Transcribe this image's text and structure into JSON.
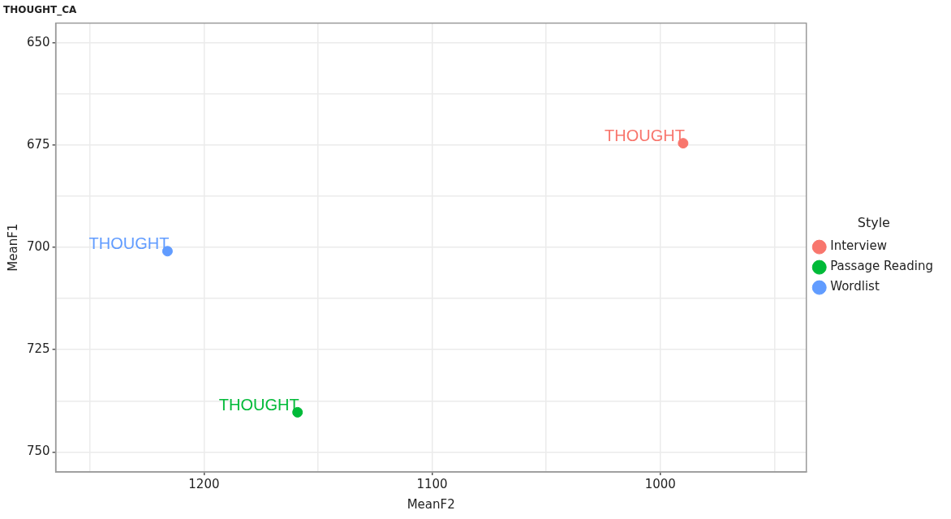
{
  "chart_data": {
    "type": "scatter",
    "title": "THOUGHT_CA",
    "xlabel": "MeanF2",
    "ylabel": "MeanF1",
    "legend_title": "Style",
    "series": [
      {
        "name": "Interview",
        "color": "#f8766d",
        "x": [
          990
        ],
        "values": [
          674.5
        ],
        "value_labels": [
          "THOUGHT"
        ]
      },
      {
        "name": "Passage Reading",
        "color": "#00ba38",
        "x": [
          1159
        ],
        "values": [
          740.3
        ],
        "value_labels": [
          "THOUGHT"
        ]
      },
      {
        "name": "Wordlist",
        "color": "#619cff",
        "x": [
          1216
        ],
        "values": [
          700.9
        ],
        "value_labels": [
          "THOUGHT"
        ]
      }
    ],
    "xlim": [
      1265,
      936
    ],
    "xticks": [
      {
        "value": 1250,
        "label": null
      },
      1200,
      {
        "value": 1150,
        "label": null
      },
      1100,
      {
        "value": 1050,
        "label": null
      },
      1000,
      {
        "value": 950,
        "label": null
      }
    ],
    "ylim": [
      754.9,
      645.1
    ],
    "yticks": [
      650,
      {
        "value": 662.5,
        "label": null
      },
      675,
      {
        "value": 687.5,
        "label": null
      },
      700,
      {
        "value": 712.5,
        "label": null
      },
      725,
      {
        "value": 737.5,
        "label": null
      },
      750
    ],
    "grid": true,
    "legend": "right",
    "marker": "circle"
  }
}
